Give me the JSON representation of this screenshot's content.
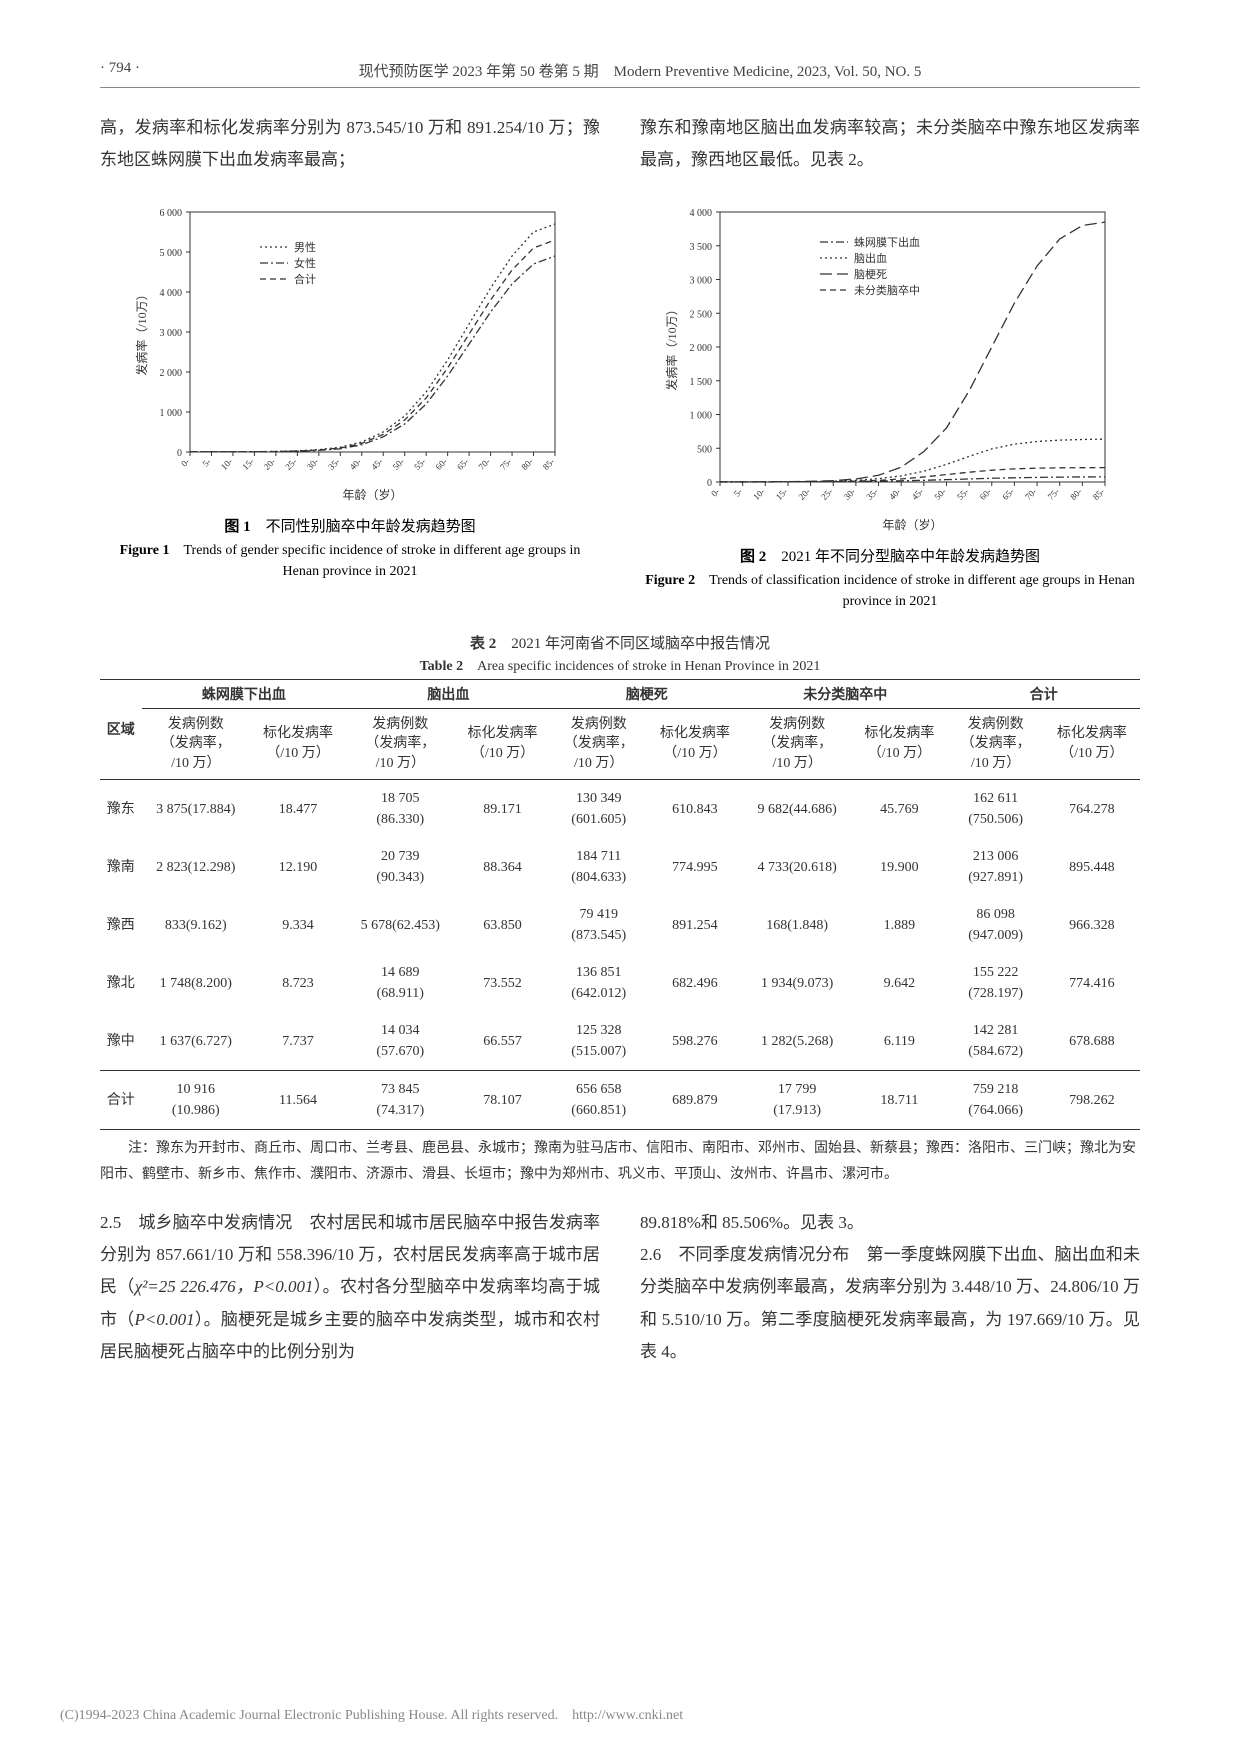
{
  "header": {
    "page_num": "· 794 ·",
    "journal_cn": "现代预防医学 2023 年第 50 卷第 5 期",
    "journal_en": "Modern Preventive Medicine, 2023, Vol. 50, NO. 5"
  },
  "intro": {
    "left_para": "高，发病率和标化发病率分别为 873.545/10 万和 891.254/10 万；豫东地区蛛网膜下出血发病率最高；",
    "right_para": "豫东和豫南地区脑出血发病率较高；未分类脑卒中豫东地区发病率最高，豫西地区最低。见表 2。"
  },
  "figure1": {
    "caption_cn_label": "图 1",
    "caption_cn": "不同性别脑卒中年龄发病趋势图",
    "caption_en_label": "Figure 1",
    "caption_en": "Trends of gender specific incidence of stroke in different age groups in Henan province in 2021",
    "ylabel": "发病率（/10万）",
    "xlabel": "年龄（岁）",
    "ymax": 6000,
    "ytick_step": 1000,
    "legend": [
      "男性",
      "女性",
      "合计"
    ],
    "legend_styles": [
      "dotted",
      "dash-dot",
      "dashed"
    ],
    "x_categories": [
      "0-",
      "5-",
      "10-",
      "15-",
      "20-",
      "25-",
      "30-",
      "35-",
      "40-",
      "45-",
      "50-",
      "55-",
      "60-",
      "65-",
      "70-",
      "75-",
      "80-",
      "85-"
    ],
    "series": {
      "male": [
        5,
        5,
        5,
        8,
        15,
        30,
        60,
        120,
        250,
        500,
        900,
        1500,
        2300,
        3200,
        4100,
        4900,
        5500,
        5700
      ],
      "female": [
        5,
        5,
        5,
        6,
        10,
        20,
        40,
        80,
        180,
        380,
        700,
        1200,
        1900,
        2700,
        3500,
        4200,
        4700,
        4900
      ],
      "total": [
        5,
        5,
        5,
        7,
        12,
        25,
        50,
        100,
        215,
        440,
        800,
        1350,
        2100,
        2950,
        3800,
        4550,
        5100,
        5300
      ]
    },
    "line_color": "#333333",
    "background": "#ffffff",
    "axis_fontsize": 10
  },
  "figure2": {
    "caption_cn_label": "图 2",
    "caption_cn": "2021 年不同分型脑卒中年龄发病趋势图",
    "caption_en_label": "Figure 2",
    "caption_en": "Trends of classification incidence of stroke in different age groups in Henan province in 2021",
    "ylabel": "发病率（/10万）",
    "xlabel": "年龄（岁）",
    "ymax": 4000,
    "ytick_step": 500,
    "legend": [
      "蛛网膜下出血",
      "脑出血",
      "脑梗死",
      "未分类脑卒中"
    ],
    "legend_styles": [
      "dash-dot",
      "dotted",
      "long-dash",
      "dashed"
    ],
    "x_categories": [
      "0-",
      "5-",
      "10-",
      "15-",
      "20-",
      "25-",
      "30-",
      "35-",
      "40-",
      "45-",
      "50-",
      "55-",
      "60-",
      "65-",
      "70-",
      "75-",
      "80-",
      "85-"
    ],
    "series": {
      "sah": [
        1,
        1,
        1,
        2,
        3,
        5,
        8,
        12,
        18,
        25,
        35,
        45,
        55,
        62,
        68,
        72,
        75,
        76
      ],
      "ich": [
        1,
        1,
        2,
        3,
        6,
        12,
        25,
        50,
        90,
        160,
        260,
        380,
        490,
        560,
        600,
        620,
        630,
        635
      ],
      "infarct": [
        2,
        2,
        3,
        5,
        10,
        20,
        45,
        100,
        220,
        450,
        800,
        1350,
        2000,
        2650,
        3200,
        3600,
        3800,
        3850
      ],
      "unclass": [
        1,
        1,
        1,
        2,
        3,
        6,
        12,
        25,
        45,
        75,
        110,
        145,
        175,
        195,
        205,
        210,
        212,
        213
      ]
    },
    "line_color": "#333333",
    "background": "#ffffff",
    "axis_fontsize": 10
  },
  "table2": {
    "title_cn_label": "表 2",
    "title_cn": "2021 年河南省不同区域脑卒中报告情况",
    "title_en_label": "Table 2",
    "title_en": "Area specific incidences of stroke in Henan Province in 2021",
    "region_header": "区域",
    "groups": [
      "蛛网膜下出血",
      "脑出血",
      "脑梗死",
      "未分类脑卒中",
      "合计"
    ],
    "sub_headers": {
      "cases": "发病例数\n（发病率，\n/10 万）",
      "rate": "标化发病率\n（/10 万）"
    },
    "rows": [
      {
        "region": "豫东",
        "c1": "3 875(17.884)",
        "r1": "18.477",
        "c2": "18 705\n(86.330)",
        "r2": "89.171",
        "c3": "130 349\n(601.605)",
        "r3": "610.843",
        "c4": "9 682(44.686)",
        "r4": "45.769",
        "c5": "162 611\n(750.506)",
        "r5": "764.278"
      },
      {
        "region": "豫南",
        "c1": "2 823(12.298)",
        "r1": "12.190",
        "c2": "20 739\n(90.343)",
        "r2": "88.364",
        "c3": "184 711\n(804.633)",
        "r3": "774.995",
        "c4": "4 733(20.618)",
        "r4": "19.900",
        "c5": "213 006\n(927.891)",
        "r5": "895.448"
      },
      {
        "region": "豫西",
        "c1": "833(9.162)",
        "r1": "9.334",
        "c2": "5 678(62.453)",
        "r2": "63.850",
        "c3": "79 419\n(873.545)",
        "r3": "891.254",
        "c4": "168(1.848)",
        "r4": "1.889",
        "c5": "86 098\n(947.009)",
        "r5": "966.328"
      },
      {
        "region": "豫北",
        "c1": "1 748(8.200)",
        "r1": "8.723",
        "c2": "14 689\n(68.911)",
        "r2": "73.552",
        "c3": "136 851\n(642.012)",
        "r3": "682.496",
        "c4": "1 934(9.073)",
        "r4": "9.642",
        "c5": "155 222\n(728.197)",
        "r5": "774.416"
      },
      {
        "region": "豫中",
        "c1": "1 637(6.727)",
        "r1": "7.737",
        "c2": "14 034\n(57.670)",
        "r2": "66.557",
        "c3": "125 328\n(515.007)",
        "r3": "598.276",
        "c4": "1 282(5.268)",
        "r4": "6.119",
        "c5": "142 281\n(584.672)",
        "r5": "678.688"
      },
      {
        "region": "合计",
        "c1": "10 916\n(10.986)",
        "r1": "11.564",
        "c2": "73 845\n(74.317)",
        "r2": "78.107",
        "c3": "656 658\n(660.851)",
        "r3": "689.879",
        "c4": "17 799\n(17.913)",
        "r4": "18.711",
        "c5": "759 218\n(764.066)",
        "r5": "798.262"
      }
    ],
    "note": "注：豫东为开封市、商丘市、周口市、兰考县、鹿邑县、永城市；豫南为驻马店市、信阳市、南阳市、邓州市、固始县、新蔡县；豫西：洛阳市、三门峡；豫北为安阳市、鹤壁市、新乡市、焦作市、濮阳市、济源市、滑县、长垣市；豫中为郑州市、巩义市、平顶山、汝州市、许昌市、漯河市。"
  },
  "body": {
    "sec25_head": "2.5　城乡脑卒中发病情况",
    "sec25_text_a": "　农村居民和城市居民脑卒中报告发病率分别为 857.661/10 万和 558.396/10 万，农村居民发病率高于城市居民（",
    "sec25_chi": "χ²=25 226.476，",
    "sec25_p1": "P<0.001",
    "sec25_text_b": "）。农村各分型脑卒中发病率均高于城市（",
    "sec25_p2": "P<0.001",
    "sec25_text_c": "）。脑梗死是城乡主要的脑卒中发病类型，城市和农村居民脑梗死占脑卒中的比例分别为",
    "right_col_a": "89.818%和 85.506%。见表 3。",
    "sec26_head": "2.6　不同季度发病情况分布",
    "sec26_text": "　第一季度蛛网膜下出血、脑出血和未分类脑卒中发病例率最高，发病率分别为 3.448/10 万、24.806/10 万和 5.510/10 万。第二季度脑梗死发病率最高，为 197.669/10 万。见表 4。"
  },
  "footer": "(C)1994-2023 China Academic Journal Electronic Publishing House. All rights reserved.　http://www.cnki.net"
}
